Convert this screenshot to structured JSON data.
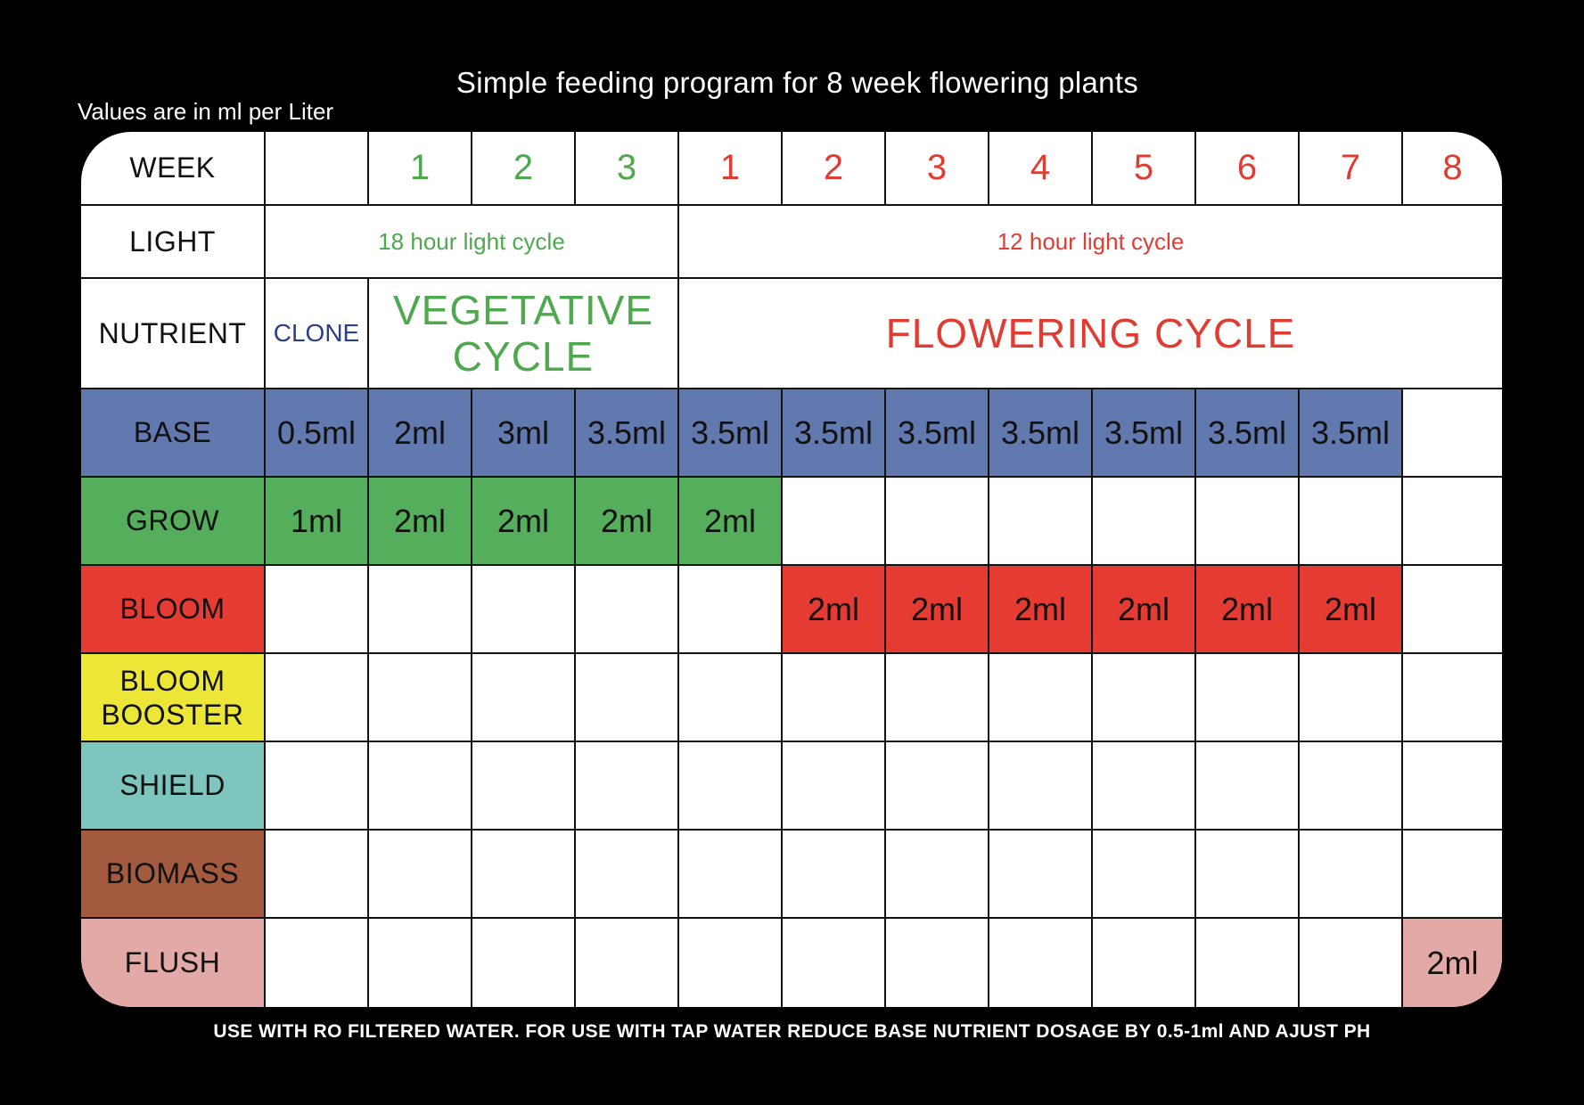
{
  "title": "Simple feeding program for 8 week flowering plants",
  "subtitle": "Values  are in ml per Liter",
  "colors": {
    "veg_text": "#4ea84e",
    "flower_text": "#e03c32",
    "clone_text": "#2a3f86",
    "base": "#6279b0",
    "grow": "#55ae5b",
    "bloom": "#e53b33",
    "bloom_booster": "#ece737",
    "shield": "#7ec6bd",
    "biomass": "#a35a3e",
    "flush": "#e2a9a6"
  },
  "table": {
    "labels": {
      "week": "WEEK",
      "light": "LIGHT",
      "nutrient": "NUTRIENT",
      "base": "BASE",
      "grow": "GROW",
      "bloom": "BLOOM",
      "bloom_booster_1": "BLOOM",
      "bloom_booster_2": "BOOSTER",
      "shield": "SHIELD",
      "biomass": "BIOMASS",
      "flush": "FLUSH"
    },
    "weeks": [
      "",
      "1",
      "2",
      "3",
      "1",
      "2",
      "3",
      "4",
      "5",
      "6",
      "7",
      "8"
    ],
    "light": {
      "veg": "18 hour light cycle",
      "flower": "12 hour light cycle"
    },
    "nutrient": {
      "clone": "CLONE",
      "veg_1": "VEGETATIVE",
      "veg_2": "CYCLE",
      "flower": "FLOWERING CYCLE"
    },
    "base": [
      "0.5ml",
      "2ml",
      "3ml",
      "3.5ml",
      "3.5ml",
      "3.5ml",
      "3.5ml",
      "3.5ml",
      "3.5ml",
      "3.5ml",
      "3.5ml",
      ""
    ],
    "grow": [
      "1ml",
      "2ml",
      "2ml",
      "2ml",
      "2ml",
      "",
      "",
      "",
      "",
      "",
      "",
      ""
    ],
    "bloom": [
      "",
      "",
      "",
      "",
      "",
      "2ml",
      "2ml",
      "2ml",
      "2ml",
      "2ml",
      "2ml",
      ""
    ],
    "flush": [
      "",
      "",
      "",
      "",
      "",
      "",
      "",
      "",
      "",
      "",
      "",
      "2ml"
    ]
  },
  "note": "USE WITH RO FILTERED WATER. FOR USE WITH TAP WATER REDUCE BASE NUTRIENT DOSAGE BY 0.5-1ml AND AJUST PH"
}
